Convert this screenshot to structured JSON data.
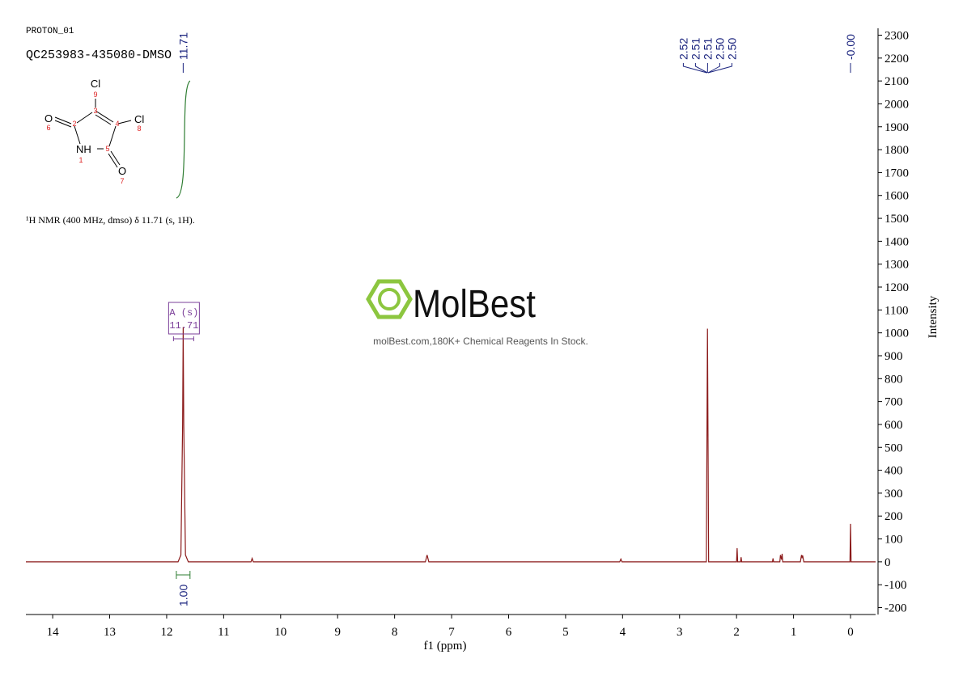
{
  "header": {
    "experiment": "PROTON_01",
    "sample": "QC253983-435080-DMSO"
  },
  "molecule": {
    "atoms": [
      "Cl",
      "Cl",
      "O",
      "O",
      "NH"
    ],
    "locants": [
      "9",
      "8",
      "6",
      "7",
      "1",
      "3",
      "4",
      "5",
      "2"
    ]
  },
  "description": "¹H NMR (400 MHz, dmso) δ 11.71 (s, 1H).",
  "watermark": {
    "brand": "MolBest",
    "tagline": "molBest.com,180K+ Chemical Reagents In Stock."
  },
  "chart_data": {
    "type": "line",
    "xlabel": "f1 (ppm)",
    "ylabel": "Intensity",
    "color": "#8b1a1a",
    "xlim": [
      14.47,
      -0.44
    ],
    "ylim": [
      -230,
      2330
    ],
    "xticks": [
      14,
      13,
      12,
      11,
      10,
      9,
      8,
      7,
      6,
      5,
      4,
      3,
      2,
      1,
      0
    ],
    "yticks": [
      -200,
      -100,
      0,
      100,
      200,
      300,
      400,
      500,
      600,
      700,
      800,
      900,
      1000,
      1100,
      1200,
      1300,
      1400,
      1500,
      1600,
      1700,
      1800,
      1900,
      2000,
      2100,
      2200,
      2300
    ],
    "x": [
      14.47,
      11.8,
      11.75,
      11.72,
      11.71,
      11.7,
      11.67,
      11.62,
      10.52,
      10.5,
      10.48,
      7.46,
      7.43,
      7.4,
      4.05,
      4.03,
      4.01,
      2.53,
      2.51,
      2.49,
      2.0,
      1.99,
      1.98,
      1.93,
      1.92,
      1.91,
      1.37,
      1.36,
      1.35,
      1.24,
      1.23,
      1.21,
      1.2,
      1.19,
      0.88,
      0.86,
      0.85,
      0.84,
      0.82,
      0.01,
      0.0,
      -0.01,
      -0.44
    ],
    "values": [
      0,
      0,
      30,
      600,
      1025,
      600,
      30,
      0,
      0,
      15,
      0,
      0,
      30,
      0,
      0,
      12,
      0,
      0,
      1018,
      0,
      0,
      60,
      0,
      0,
      20,
      0,
      0,
      15,
      0,
      0,
      30,
      10,
      35,
      0,
      0,
      30,
      20,
      28,
      0,
      0,
      166,
      0,
      0
    ],
    "peak_labels": [
      {
        "value": 11.71,
        "label": "11.71"
      },
      {
        "value": 2.52,
        "label": "2.52"
      },
      {
        "value": 2.51,
        "label": "2.51"
      },
      {
        "value": 2.51,
        "label": "2.51"
      },
      {
        "value": 2.5,
        "label": "2.50"
      },
      {
        "value": 2.5,
        "label": "2.50"
      },
      {
        "value": 0.0,
        "label": "-0.00"
      }
    ],
    "multiplet": {
      "label": "A (s)",
      "shift": 11.71
    },
    "integral": {
      "value": 1.0,
      "label": "1.00",
      "range": [
        11.83,
        11.59
      ]
    }
  }
}
